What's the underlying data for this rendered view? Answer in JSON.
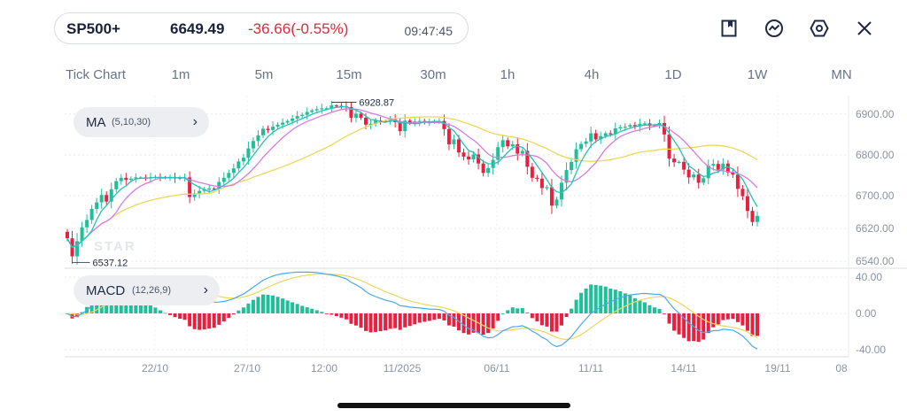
{
  "quote": {
    "symbol": "SP500+",
    "price": "6649.49",
    "change": "-36.66(-0.55%)",
    "time": "09:47:45"
  },
  "toolbar": {
    "icons": [
      "bookmark-icon",
      "trend-icon",
      "settings-icon",
      "close-icon"
    ]
  },
  "timeframes": [
    "Tick Chart",
    "1m",
    "5m",
    "15m",
    "30m",
    "1h",
    "4h",
    "1D",
    "1W",
    "MN"
  ],
  "indicators": {
    "ma": {
      "name": "MA",
      "params": "(5,10,30)"
    },
    "macd": {
      "name": "MACD",
      "params": "(12,26,9)"
    }
  },
  "colors": {
    "up": "#1fbf9a",
    "down": "#e8203f",
    "ma5": "#26c2b9",
    "ma10": "#d77be0",
    "ma30": "#ecd75a",
    "dif": "#4aa8ee",
    "dea": "#ecd75a"
  },
  "chart_data": {
    "type": "candlestick",
    "price_axis": {
      "ticks": [
        "6900.00",
        "6800.00",
        "6700.00",
        "6620.00",
        "6540.00"
      ]
    },
    "macd_axis": {
      "ticks": [
        "40.00",
        "0.00",
        "-40.00"
      ]
    },
    "x_axis": {
      "ticks": [
        "22/10",
        "27/10",
        "12:00",
        "11/2025",
        "06/11",
        "11/11",
        "14/11",
        "19/11",
        "08"
      ]
    },
    "annotations": {
      "high": "6928.87",
      "low": "6537.12"
    },
    "price_range": [
      6525,
      6945
    ],
    "macd_range": [
      -48,
      48
    ],
    "closes": [
      6596,
      6552,
      6589,
      6623,
      6641,
      6668,
      6684,
      6702,
      6686,
      6716,
      6736,
      6744,
      6739,
      6742,
      6745,
      6745,
      6744,
      6745,
      6746,
      6745,
      6744,
      6745,
      6743,
      6744,
      6745,
      6697,
      6706,
      6712,
      6716,
      6718,
      6716,
      6734,
      6744,
      6756,
      6767,
      6784,
      6793,
      6816,
      6834,
      6848,
      6864,
      6861,
      6869,
      6874,
      6879,
      6883,
      6889,
      6895,
      6898,
      6905,
      6909,
      6912,
      6914,
      6914,
      6921,
      6920,
      6919,
      6917,
      6891,
      6901,
      6891,
      6874,
      6876,
      6884,
      6883,
      6882,
      6887,
      6880,
      6858,
      6884,
      6878,
      6882,
      6883,
      6880,
      6880,
      6883,
      6883,
      6863,
      6826,
      6838,
      6806,
      6796,
      6789,
      6801,
      6779,
      6756,
      6768,
      6788,
      6819,
      6836,
      6821,
      6826,
      6803,
      6810,
      6771,
      6744,
      6742,
      6719,
      6721,
      6676,
      6691,
      6732,
      6763,
      6783,
      6814,
      6827,
      6833,
      6853,
      6838,
      6846,
      6853,
      6852,
      6865,
      6868,
      6869,
      6873,
      6870,
      6876,
      6877,
      6871,
      6873,
      6878,
      6850,
      6791,
      6782,
      6783,
      6764,
      6745,
      6752,
      6732,
      6743,
      6774,
      6778,
      6764,
      6779,
      6757,
      6752,
      6717,
      6699,
      6663,
      6636,
      6651
    ]
  }
}
